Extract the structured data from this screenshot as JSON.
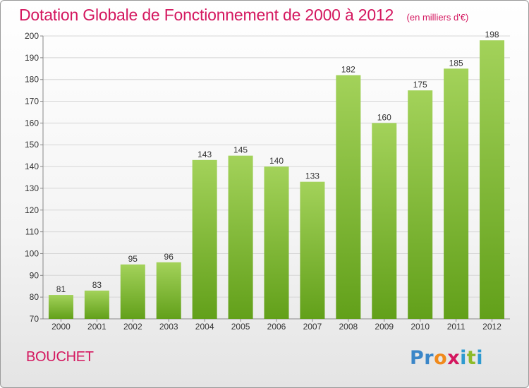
{
  "header": {
    "title": "Dotation Globale de Fonctionnement de 2000 à 2012",
    "unit": "(en milliers d'€)"
  },
  "footer": {
    "commune": "BOUCHET",
    "logo": [
      "P",
      "r",
      "o",
      "x",
      "i",
      "t",
      "i"
    ],
    "logo_colors": [
      "#3a86c8",
      "#3a86c8",
      "#f08a1c",
      "#d4175f",
      "#2e9ad0",
      "#8dbb2a",
      "#2e9ad0"
    ]
  },
  "colors": {
    "bar_top": "#a3d25a",
    "bar_bottom": "#62a01a",
    "grid": "#d6d6d6",
    "axis": "#888888"
  },
  "chart_data": {
    "type": "bar",
    "title": "Dotation Globale de Fonctionnement de 2000 à 2012",
    "subtitle": "(en milliers d'€)",
    "categories": [
      "2000",
      "2001",
      "2002",
      "2003",
      "2004",
      "2005",
      "2006",
      "2007",
      "2008",
      "2009",
      "2010",
      "2011",
      "2012"
    ],
    "values": [
      81,
      83,
      95,
      96,
      143,
      145,
      140,
      133,
      182,
      160,
      175,
      185,
      198
    ],
    "ylim": [
      70,
      200
    ],
    "yticks": [
      70,
      80,
      90,
      100,
      110,
      120,
      130,
      140,
      150,
      160,
      170,
      180,
      190,
      200
    ],
    "grid": true,
    "data_labels": true
  }
}
